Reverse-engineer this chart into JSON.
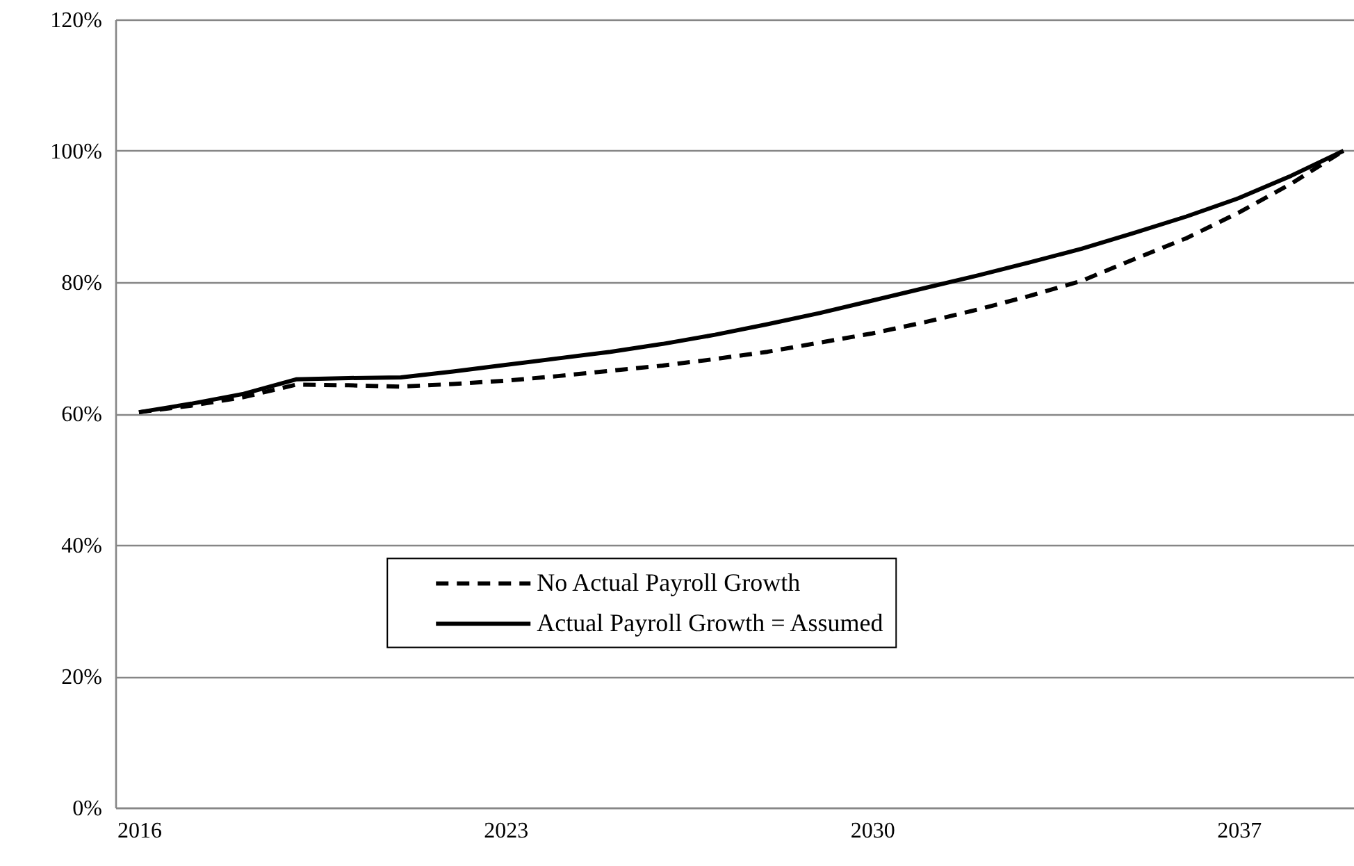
{
  "chart_data": {
    "type": "line",
    "x": [
      2016,
      2017,
      2018,
      2019,
      2020,
      2021,
      2022,
      2023,
      2024,
      2025,
      2026,
      2027,
      2028,
      2029,
      2030,
      2031,
      2032,
      2033,
      2034,
      2035,
      2036,
      2037,
      2038,
      2039
    ],
    "series": [
      {
        "name": "No Actual Payroll Growth",
        "color": "#000000",
        "line_style": "dashed",
        "values": [
          60.2,
          61.2,
          62.5,
          64.4,
          64.3,
          64.1,
          64.5,
          65.0,
          65.7,
          66.5,
          67.3,
          68.3,
          69.4,
          70.8,
          72.2,
          73.9,
          75.8,
          77.9,
          80.2,
          83.5,
          86.7,
          90.6,
          95.0,
          100
        ]
      },
      {
        "name": "Actual Payroll Growth = Assumed",
        "color": "#000000",
        "line_style": "solid",
        "values": [
          60.2,
          61.5,
          63.0,
          65.2,
          65.4,
          65.5,
          66.4,
          67.4,
          68.4,
          69.4,
          70.6,
          72.0,
          73.6,
          75.3,
          77.2,
          79.1,
          81.0,
          83.0,
          85.1,
          87.5,
          90.0,
          92.8,
          96.2,
          100
        ]
      }
    ],
    "xlim": [
      2015.55,
      2039.2
    ],
    "xticks": [
      2016,
      2023,
      2030,
      2037
    ],
    "ylim": [
      0,
      120
    ],
    "yticks": [
      {
        "value": 0,
        "label": "0%"
      },
      {
        "value": 20,
        "label": "20%"
      },
      {
        "value": 40,
        "label": "40%"
      },
      {
        "value": 60,
        "label": "60%"
      },
      {
        "value": 80,
        "label": "80%"
      },
      {
        "value": 100,
        "label": "100%"
      },
      {
        "value": 120,
        "label": "120%"
      }
    ],
    "grid": "y",
    "legend": "bottom"
  }
}
